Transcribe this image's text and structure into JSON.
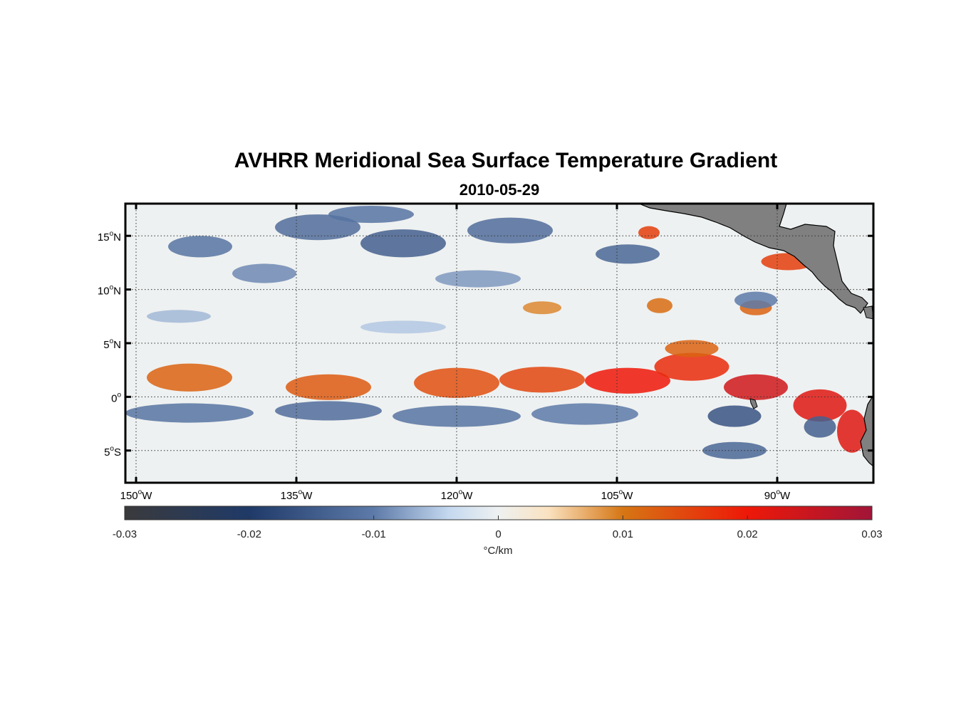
{
  "chart_data": {
    "type": "heatmap",
    "title": "AVHRR Meridional Sea Surface Temperature Gradient",
    "subtitle": "2010-05-29",
    "xlim": [
      -151,
      -81
    ],
    "ylim": [
      -8,
      18
    ],
    "x_ticks": [
      {
        "value": -150,
        "deg": "150",
        "suffix": "W"
      },
      {
        "value": -135,
        "deg": "135",
        "suffix": "W"
      },
      {
        "value": -120,
        "deg": "120",
        "suffix": "W"
      },
      {
        "value": -105,
        "deg": "105",
        "suffix": "W"
      },
      {
        "value": -90,
        "deg": "90",
        "suffix": "W"
      }
    ],
    "y_ticks": [
      {
        "value": 15,
        "deg": "15",
        "suffix": "N"
      },
      {
        "value": 10,
        "deg": "10",
        "suffix": "N"
      },
      {
        "value": 5,
        "deg": "5",
        "suffix": "N"
      },
      {
        "value": 0,
        "deg": "0",
        "suffix": ""
      },
      {
        "value": -5,
        "deg": "5",
        "suffix": "S"
      }
    ],
    "colorbar": {
      "label": "°C/km",
      "range": [
        -0.03,
        0.03
      ],
      "ticks": [
        {
          "value": -0.03,
          "label": "-0.03"
        },
        {
          "value": -0.02,
          "label": "-0.02"
        },
        {
          "value": -0.01,
          "label": "-0.01"
        },
        {
          "value": 0,
          "label": "0"
        },
        {
          "value": 0.01,
          "label": "0.01"
        },
        {
          "value": 0.02,
          "label": "0.02"
        },
        {
          "value": 0.03,
          "label": "0.03"
        }
      ],
      "stops": [
        {
          "value": -0.03,
          "color": "#3a3a3c"
        },
        {
          "value": -0.02,
          "color": "#1f3a68"
        },
        {
          "value": -0.01,
          "color": "#5d7aa8"
        },
        {
          "value": -0.004,
          "color": "#c4d8ef"
        },
        {
          "value": 0,
          "color": "#eef1f1"
        },
        {
          "value": 0.004,
          "color": "#fae2c0"
        },
        {
          "value": 0.01,
          "color": "#d67614"
        },
        {
          "value": 0.02,
          "color": "#ee1808"
        },
        {
          "value": 0.03,
          "color": "#a11538"
        }
      ]
    },
    "features": [
      {
        "lon": -145,
        "lat": 1.8,
        "sx": 4,
        "sy": 1.3,
        "v": 0.012
      },
      {
        "lon": -132,
        "lat": 0.9,
        "sx": 4,
        "sy": 1.2,
        "v": 0.013
      },
      {
        "lon": -120,
        "lat": 1.3,
        "sx": 4,
        "sy": 1.4,
        "v": 0.014
      },
      {
        "lon": -112,
        "lat": 1.6,
        "sx": 4,
        "sy": 1.2,
        "v": 0.015
      },
      {
        "lon": -104,
        "lat": 1.5,
        "sx": 4,
        "sy": 1.2,
        "v": 0.02
      },
      {
        "lon": -98,
        "lat": 2.8,
        "sx": 3.5,
        "sy": 1.3,
        "v": 0.018
      },
      {
        "lon": -92,
        "lat": 0.9,
        "sx": 3,
        "sy": 1.2,
        "v": 0.024
      },
      {
        "lon": -86,
        "lat": -0.8,
        "sx": 2.5,
        "sy": 1.5,
        "v": 0.022
      },
      {
        "lon": -83,
        "lat": -3.2,
        "sx": 1.4,
        "sy": 2,
        "v": 0.022
      },
      {
        "lon": -98,
        "lat": 4.5,
        "sx": 2.5,
        "sy": 0.8,
        "v": 0.012
      },
      {
        "lon": -89,
        "lat": 12.6,
        "sx": 2.5,
        "sy": 0.8,
        "v": 0.016
      },
      {
        "lon": -92,
        "lat": 8.3,
        "sx": 1.5,
        "sy": 0.7,
        "v": 0.012
      },
      {
        "lon": -101,
        "lat": 8.5,
        "sx": 1.2,
        "sy": 0.7,
        "v": 0.011
      },
      {
        "lon": -112,
        "lat": 8.3,
        "sx": 1.8,
        "sy": 0.6,
        "v": 0.009
      },
      {
        "lon": -102,
        "lat": 15.3,
        "sx": 1,
        "sy": 0.6,
        "v": 0.016
      },
      {
        "lon": -145,
        "lat": -1.5,
        "sx": 6,
        "sy": 0.9,
        "v": -0.011
      },
      {
        "lon": -132,
        "lat": -1.3,
        "sx": 5,
        "sy": 0.9,
        "v": -0.012
      },
      {
        "lon": -120,
        "lat": -1.8,
        "sx": 6,
        "sy": 1,
        "v": -0.011
      },
      {
        "lon": -108,
        "lat": -1.6,
        "sx": 5,
        "sy": 1,
        "v": -0.01
      },
      {
        "lon": -94,
        "lat": -1.8,
        "sx": 2.5,
        "sy": 1,
        "v": -0.016
      },
      {
        "lon": -94,
        "lat": -5,
        "sx": 3,
        "sy": 0.8,
        "v": -0.013
      },
      {
        "lon": -86,
        "lat": -2.8,
        "sx": 1.5,
        "sy": 1,
        "v": -0.014
      },
      {
        "lon": -133,
        "lat": 15.8,
        "sx": 4,
        "sy": 1.2,
        "v": -0.012
      },
      {
        "lon": -125,
        "lat": 14.3,
        "sx": 4,
        "sy": 1.3,
        "v": -0.014
      },
      {
        "lon": -115,
        "lat": 15.5,
        "sx": 4,
        "sy": 1.2,
        "v": -0.012
      },
      {
        "lon": -104,
        "lat": 13.3,
        "sx": 3,
        "sy": 0.9,
        "v": -0.013
      },
      {
        "lon": -144,
        "lat": 14,
        "sx": 3,
        "sy": 1,
        "v": -0.011
      },
      {
        "lon": -138,
        "lat": 11.5,
        "sx": 3,
        "sy": 0.9,
        "v": -0.009
      },
      {
        "lon": -118,
        "lat": 11,
        "sx": 4,
        "sy": 0.8,
        "v": -0.008
      },
      {
        "lon": -92,
        "lat": 9,
        "sx": 2,
        "sy": 0.8,
        "v": -0.01
      },
      {
        "lon": -128,
        "lat": 17,
        "sx": 4,
        "sy": 0.8,
        "v": -0.011
      },
      {
        "lon": -146,
        "lat": 7.5,
        "sx": 3,
        "sy": 0.6,
        "v": -0.006
      },
      {
        "lon": -125,
        "lat": 6.5,
        "sx": 4,
        "sy": 0.6,
        "v": -0.005
      }
    ]
  }
}
